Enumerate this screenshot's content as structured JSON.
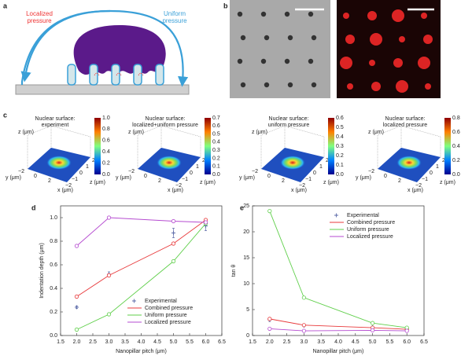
{
  "panels": {
    "a": {
      "label": "a",
      "localized": [
        "Localized",
        "pressure"
      ],
      "uniform": [
        "Uniform",
        "pressure"
      ]
    },
    "b": {
      "label": "b"
    },
    "c": {
      "label": "c",
      "z_label": "z (μm)",
      "y_label": "y (μm)",
      "x_label": "x (μm)",
      "x_ticks": [
        "−2",
        "−1",
        "0",
        "1",
        "2"
      ],
      "y_ticks": [
        "−2",
        "0",
        "2"
      ],
      "plots": [
        {
          "title": [
            "Nuclear surface:",
            "experiment"
          ],
          "colorbar": [
            "0.0",
            "0.2",
            "0.4",
            "0.6",
            "0.8",
            "1.0"
          ]
        },
        {
          "title": [
            "Nuclear surface:",
            "localized+uniform pressure"
          ],
          "colorbar": [
            "0.0",
            "0.1",
            "0.2",
            "0.3",
            "0.4",
            "0.5",
            "0.6",
            "0.7"
          ]
        },
        {
          "title": [
            "Nuclear surface:",
            "uniform pressure"
          ],
          "colorbar": [
            "0.0",
            "0.1",
            "0.2",
            "0.3",
            "0.4",
            "0.5",
            "0.6"
          ]
        },
        {
          "title": [
            "Nuclear surface:",
            "localized pressure"
          ],
          "colorbar": [
            "0.0",
            "0.2",
            "0.4",
            "0.6",
            "0.8"
          ]
        }
      ]
    },
    "d": {
      "label": "d"
    },
    "e": {
      "label": "e"
    }
  },
  "chart_data": [
    {
      "type": "line",
      "x": [
        2,
        3,
        5,
        6
      ],
      "xlim": [
        1.5,
        6.5
      ],
      "xticks": [
        1.5,
        {
          "value": 2,
          "label": "2.0"
        },
        2.5,
        {
          "value": 3,
          "label": "3.0"
        },
        3.5,
        {
          "value": 4,
          "label": "4.0"
        },
        4.5,
        {
          "value": 5,
          "label": "5.0"
        },
        5.5,
        {
          "value": 6,
          "label": "6.0"
        },
        6.5
      ],
      "ylim": [
        0,
        1.1
      ],
      "yticks": [
        {
          "value": 0,
          "label": "0.0"
        },
        0.2,
        0.4,
        0.6,
        0.8,
        {
          "value": 1,
          "label": "1.0"
        }
      ],
      "x_label": "Nanopillar pitch (μm)",
      "y_label": "Indentation depth (μm)",
      "legend": "lower right",
      "series": [
        {
          "name": "Experimental",
          "color": "#5b6aa8",
          "marker": "plus",
          "line": false,
          "values": [
            0.24,
            0.52,
            0.87,
            0.93
          ],
          "errors": [
            0.01,
            0.02,
            0.04,
            0.04
          ]
        },
        {
          "name": "Combined pressure",
          "color": "#e8393b",
          "marker": "circle",
          "values": [
            0.33,
            0.51,
            0.78,
            0.98
          ]
        },
        {
          "name": "Uniform pressure",
          "color": "#5fcf4a",
          "marker": "circle",
          "values": [
            0.05,
            0.18,
            0.63,
            0.95
          ]
        },
        {
          "name": "Localized pressure",
          "color": "#b54bd0",
          "marker": "circle",
          "values": [
            0.76,
            1.0,
            0.97,
            0.96
          ]
        }
      ]
    },
    {
      "type": "line",
      "x": [
        2,
        3,
        5,
        6
      ],
      "xlim": [
        1.5,
        6.5
      ],
      "xticks": [
        1.5,
        {
          "value": 2,
          "label": "2.0"
        },
        2.5,
        {
          "value": 3,
          "label": "3.0"
        },
        3.5,
        {
          "value": 4,
          "label": "4.0"
        },
        4.5,
        {
          "value": 5,
          "label": "5.0"
        },
        5.5,
        {
          "value": 6,
          "label": "6.0"
        },
        6.5
      ],
      "ylim": [
        0,
        25
      ],
      "yticks": [
        0,
        5,
        10,
        15,
        20,
        25
      ],
      "x_label": "Nanopillar pitch (μm)",
      "y_label": "tan θ",
      "legend": "upper right",
      "series": [
        {
          "name": "Experimental",
          "color": "#5b6aa8",
          "marker": "plus",
          "line": false,
          "values": [
            3.0,
            1.9,
            1.6,
            1.3
          ],
          "errors": [
            0.3,
            0.2,
            0.2,
            0.2
          ]
        },
        {
          "name": "Combined pressure",
          "color": "#e8393b",
          "marker": "circle",
          "values": [
            3.2,
            2.0,
            1.5,
            1.2
          ]
        },
        {
          "name": "Uniform pressure",
          "color": "#5fcf4a",
          "marker": "circle",
          "values": [
            24,
            7.3,
            2.4,
            1.5
          ]
        },
        {
          "name": "Localized pressure",
          "color": "#b54bd0",
          "marker": "circle",
          "values": [
            1.3,
            0.9,
            1.0,
            0.9
          ]
        }
      ]
    }
  ]
}
